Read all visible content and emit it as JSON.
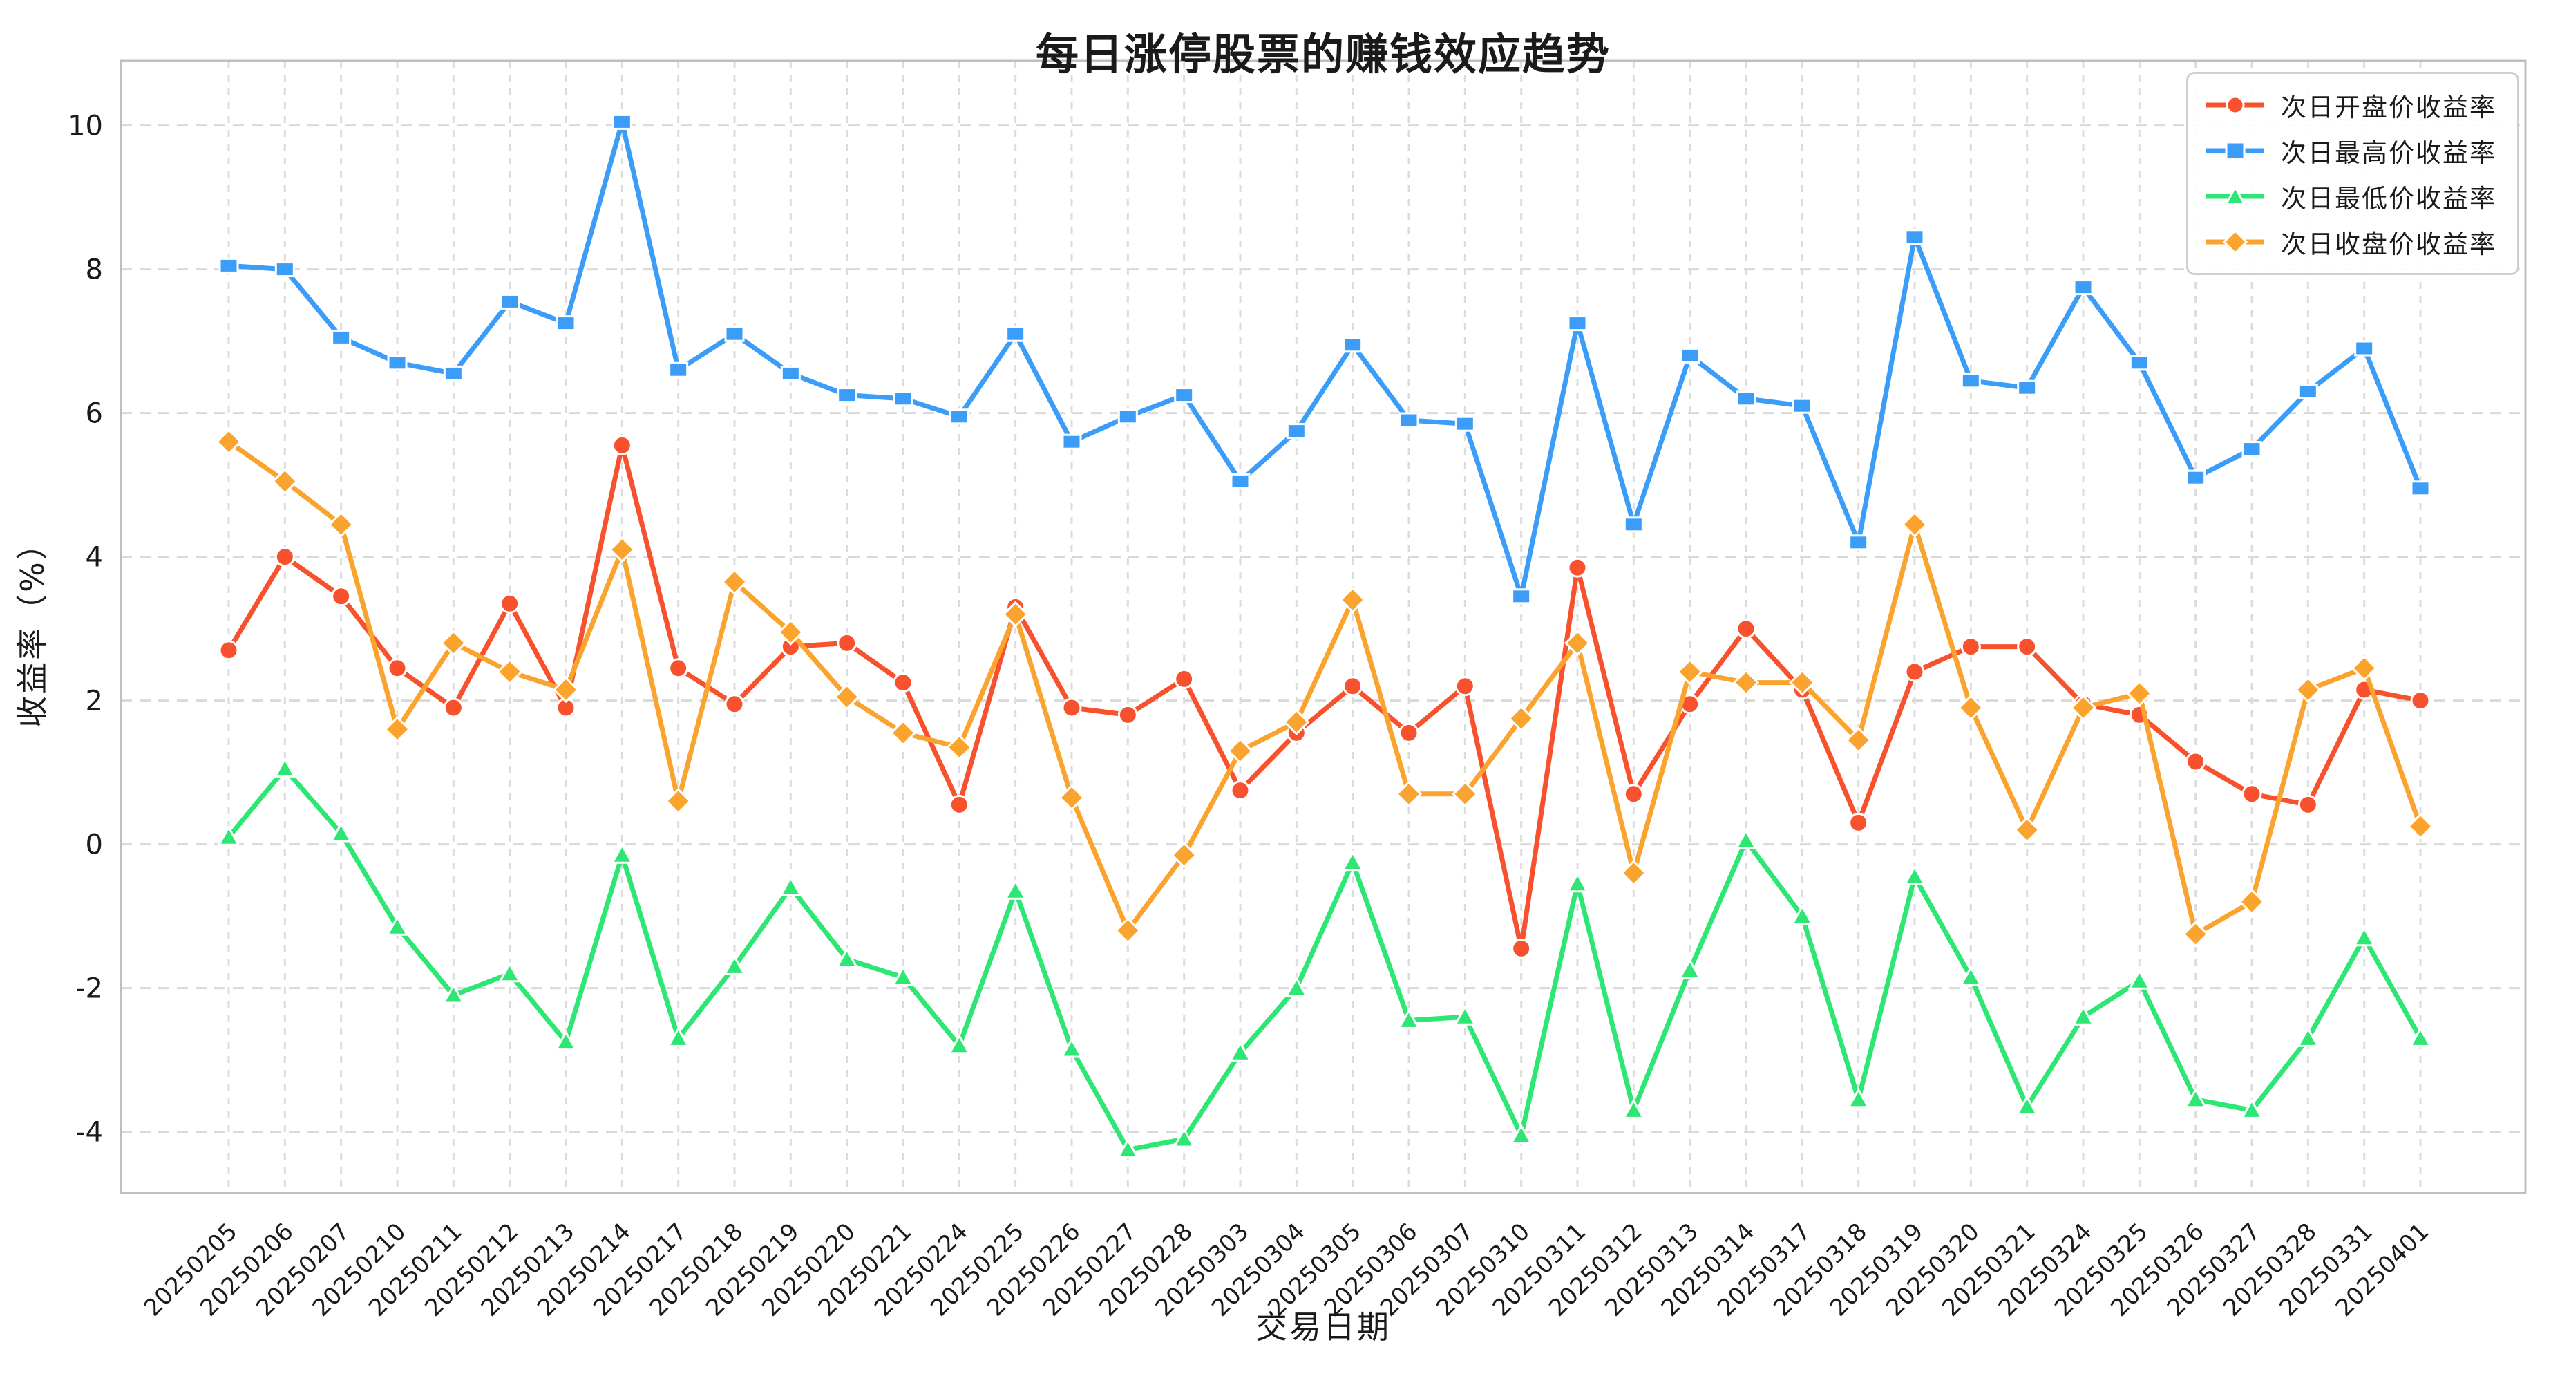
{
  "chart_data": {
    "type": "line",
    "title": "每日涨停股票的赚钱效应趋势",
    "xlabel": "交易日期",
    "ylabel": "收益率（%）",
    "x": [
      "20250205",
      "20250206",
      "20250207",
      "20250210",
      "20250211",
      "20250212",
      "20250213",
      "20250214",
      "20250217",
      "20250218",
      "20250219",
      "20250220",
      "20250221",
      "20250224",
      "20250225",
      "20250226",
      "20250227",
      "20250228",
      "20250303",
      "20250304",
      "20250305",
      "20250306",
      "20250307",
      "20250310",
      "20250311",
      "20250312",
      "20250313",
      "20250314",
      "20250317",
      "20250318",
      "20250319",
      "20250320",
      "20250321",
      "20250324",
      "20250325",
      "20250326",
      "20250327",
      "20250328",
      "20250331",
      "20250401"
    ],
    "series": [
      {
        "name": "次日开盘价收益率",
        "color": "#F7512E",
        "marker": "circle",
        "values": [
          2.7,
          4.0,
          3.45,
          2.45,
          1.9,
          3.35,
          1.9,
          5.55,
          2.45,
          1.95,
          2.75,
          2.8,
          2.25,
          0.55,
          3.3,
          1.9,
          1.8,
          2.3,
          0.75,
          1.55,
          2.2,
          1.55,
          2.2,
          -1.45,
          3.85,
          0.7,
          1.95,
          3.0,
          2.15,
          0.3,
          2.4,
          2.75,
          2.75,
          1.95,
          1.8,
          1.15,
          0.7,
          0.55,
          2.15,
          2.0
        ]
      },
      {
        "name": "次日最高价收益率",
        "color": "#3B9DF8",
        "marker": "square",
        "values": [
          8.05,
          8.0,
          7.05,
          6.7,
          6.55,
          7.55,
          7.25,
          10.05,
          6.6,
          7.1,
          6.55,
          6.25,
          6.2,
          5.95,
          7.1,
          5.6,
          5.95,
          6.25,
          5.05,
          5.75,
          6.95,
          5.9,
          5.85,
          3.45,
          7.25,
          4.45,
          6.8,
          6.2,
          6.1,
          4.2,
          8.45,
          6.45,
          6.35,
          7.75,
          6.7,
          5.1,
          5.5,
          6.3,
          6.9,
          4.95
        ]
      },
      {
        "name": "次日最低价收益率",
        "color": "#2EE673",
        "marker": "triangle",
        "values": [
          0.1,
          1.05,
          0.15,
          -1.15,
          -2.1,
          -1.8,
          -2.75,
          -0.15,
          -2.7,
          -1.7,
          -0.6,
          -1.6,
          -1.85,
          -2.8,
          -0.65,
          -2.85,
          -4.25,
          -4.1,
          -2.9,
          -2.0,
          -0.25,
          -2.45,
          -2.4,
          -4.05,
          -0.55,
          -3.7,
          -1.75,
          0.05,
          -1.0,
          -3.55,
          -0.45,
          -1.85,
          -3.65,
          -2.4,
          -1.9,
          -3.55,
          -3.7,
          -2.7,
          -1.3,
          -2.7
        ]
      },
      {
        "name": "次日收盘价收益率",
        "color": "#FAA42F",
        "marker": "diamond",
        "values": [
          5.6,
          5.05,
          4.45,
          1.6,
          2.8,
          2.4,
          2.15,
          4.1,
          0.6,
          3.65,
          2.95,
          2.05,
          1.55,
          1.35,
          3.2,
          0.65,
          -1.2,
          -0.15,
          1.3,
          1.7,
          3.4,
          0.7,
          0.7,
          1.75,
          2.8,
          -0.4,
          2.4,
          2.25,
          2.25,
          1.45,
          4.45,
          1.9,
          0.2,
          1.9,
          2.1,
          -1.25,
          -0.8,
          2.15,
          2.45,
          0.25
        ]
      }
    ],
    "yticks": [
      -4,
      -2,
      0,
      2,
      4,
      6,
      8,
      10
    ],
    "ylim": [
      -4.85,
      10.9
    ],
    "grid": true,
    "legend_position": "top-right"
  }
}
